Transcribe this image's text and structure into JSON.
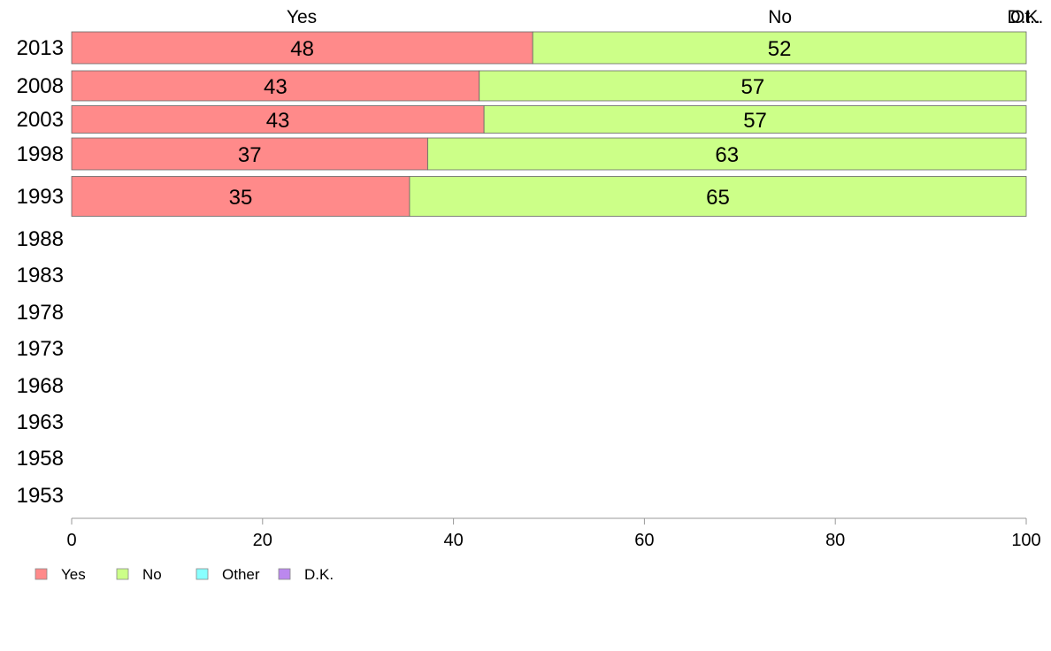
{
  "chart_data": {
    "type": "bar",
    "orientation": "horizontal",
    "stacked": true,
    "categories": [
      "2013",
      "2008",
      "2003",
      "1998",
      "1993",
      "1988",
      "1983",
      "1978",
      "1973",
      "1968",
      "1963",
      "1958",
      "1953"
    ],
    "series": [
      {
        "name": "Yes",
        "color": "#ff8a8a",
        "values": [
          48.3,
          42.7,
          43.2,
          37.3,
          35.4,
          null,
          null,
          null,
          null,
          null,
          null,
          null,
          null
        ],
        "labels": [
          "48",
          "43",
          "43",
          "37",
          "35",
          "",
          "",
          "",
          "",
          "",
          "",
          "",
          ""
        ]
      },
      {
        "name": "No",
        "color": "#ccff88",
        "values": [
          51.7,
          57.3,
          56.8,
          62.7,
          64.6,
          null,
          null,
          null,
          null,
          null,
          null,
          null,
          null
        ],
        "labels": [
          "52",
          "57",
          "57",
          "63",
          "65",
          "",
          "",
          "",
          "",
          "",
          "",
          "",
          ""
        ]
      },
      {
        "name": "Other",
        "color": "#88ffff",
        "values": [
          0,
          0,
          0,
          0,
          0,
          null,
          null,
          null,
          null,
          null,
          null,
          null,
          null
        ],
        "labels": [
          "",
          "",
          "",
          "",
          "",
          "",
          "",
          "",
          "",
          "",
          "",
          "",
          ""
        ]
      },
      {
        "name": "D.K.",
        "color": "#bb88ee",
        "values": [
          0,
          0,
          0,
          0,
          0,
          null,
          null,
          null,
          null,
          null,
          null,
          null,
          null
        ],
        "labels": [
          "",
          "",
          "",
          "",
          "",
          "",
          "",
          "",
          "",
          "",
          "",
          "",
          ""
        ]
      }
    ],
    "top_labels": [
      {
        "text": "Yes",
        "value": 24.1
      },
      {
        "text": "No",
        "value": 74.2
      },
      {
        "text": "D.K.",
        "value": 99.9
      },
      {
        "text": "Ot..",
        "value": 99.9
      }
    ],
    "xlim": [
      0,
      100
    ],
    "xticks": [
      "0",
      "20",
      "40",
      "60",
      "80",
      "100"
    ],
    "grid": false,
    "legend": {
      "position": "bottom-left",
      "items": [
        {
          "label": "Yes",
          "color": "#ff8a8a"
        },
        {
          "label": "No",
          "color": "#ccff88"
        },
        {
          "label": "Other",
          "color": "#88ffff"
        },
        {
          "label": "D.K.",
          "color": "#bb88ee"
        }
      ]
    }
  }
}
